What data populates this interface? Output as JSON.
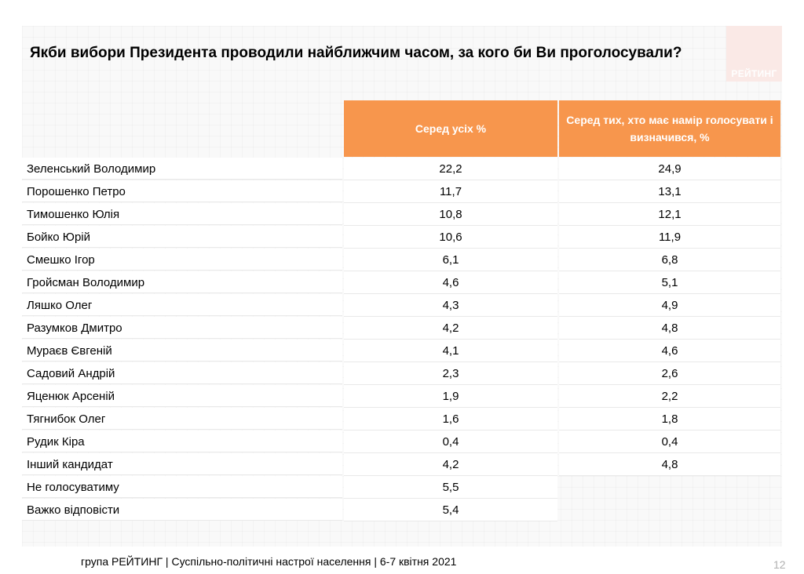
{
  "title": "Якби вибори Президента проводили найближчим часом, за кого би Ви проголосували?",
  "logo_text": "РЕЙТИНГ",
  "columns": {
    "all": "Серед усіх %",
    "decided": "Серед тих, хто має намір голосувати і визначився, %"
  },
  "rows": [
    {
      "name": "Зеленський Володимир",
      "all": "22,2",
      "decided": "24,9"
    },
    {
      "name": "Порошенко Петро",
      "all": "11,7",
      "decided": "13,1"
    },
    {
      "name": "Тимошенко Юлія",
      "all": "10,8",
      "decided": "12,1"
    },
    {
      "name": "Бойко Юрій",
      "all": "10,6",
      "decided": "11,9"
    },
    {
      "name": "Смешко Ігор",
      "all": "6,1",
      "decided": "6,8"
    },
    {
      "name": "Гройсман Володимир",
      "all": "4,6",
      "decided": "5,1"
    },
    {
      "name": "Ляшко Олег",
      "all": "4,3",
      "decided": "4,9"
    },
    {
      "name": "Разумков Дмитро",
      "all": "4,2",
      "decided": "4,8"
    },
    {
      "name": "Мураєв Євгеній",
      "all": "4,1",
      "decided": "4,6"
    },
    {
      "name": "Садовий Андрій",
      "all": "2,3",
      "decided": "2,6"
    },
    {
      "name": "Яценюк Арсеній",
      "all": "1,9",
      "decided": "2,2"
    },
    {
      "name": "Тягнибок Олег",
      "all": "1,6",
      "decided": "1,8"
    },
    {
      "name": "Рудик Кіра",
      "all": "0,4",
      "decided": "0,4"
    },
    {
      "name": "Інший кандидат",
      "all": "4,2",
      "decided": "4,8"
    },
    {
      "name": "Не голосуватиму",
      "all": "5,5",
      "decided": ""
    },
    {
      "name": "Важко відповісти",
      "all": "5,4",
      "decided": ""
    }
  ],
  "footer": "група РЕЙТИНГ | Суспільно-політичні настрої населення | 6-7 квітня 2021",
  "page_number": "12",
  "colors": {
    "header_orange": "#f7964d",
    "logo_background": "#fbe9e6"
  }
}
